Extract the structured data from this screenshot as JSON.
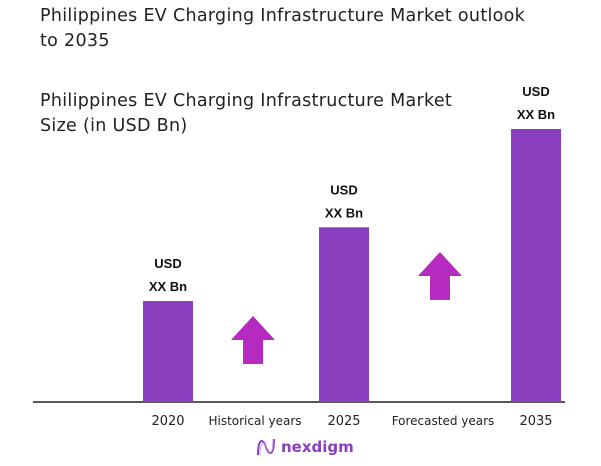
{
  "chart_data": {
    "type": "bar",
    "title": "Philippines EV Charging Infrastructure Market outlook to 2035",
    "subtitle": "Philippines EV Charging Infrastructure Market Size (in USD Bn)",
    "categories": [
      "2020",
      "2025",
      "2035"
    ],
    "relative_values": [
      37,
      64,
      100
    ],
    "data_labels": [
      [
        "USD",
        "XX Bn"
      ],
      [
        "USD",
        "XX Bn"
      ],
      [
        "USD",
        "XX Bn"
      ]
    ],
    "period_labels": [
      "Historical years",
      "Forecasted years"
    ],
    "grid": false,
    "bar_color": "#8a3fbf",
    "arrow_color": "#b52bbf"
  },
  "logo": {
    "text": "nexdigm"
  }
}
